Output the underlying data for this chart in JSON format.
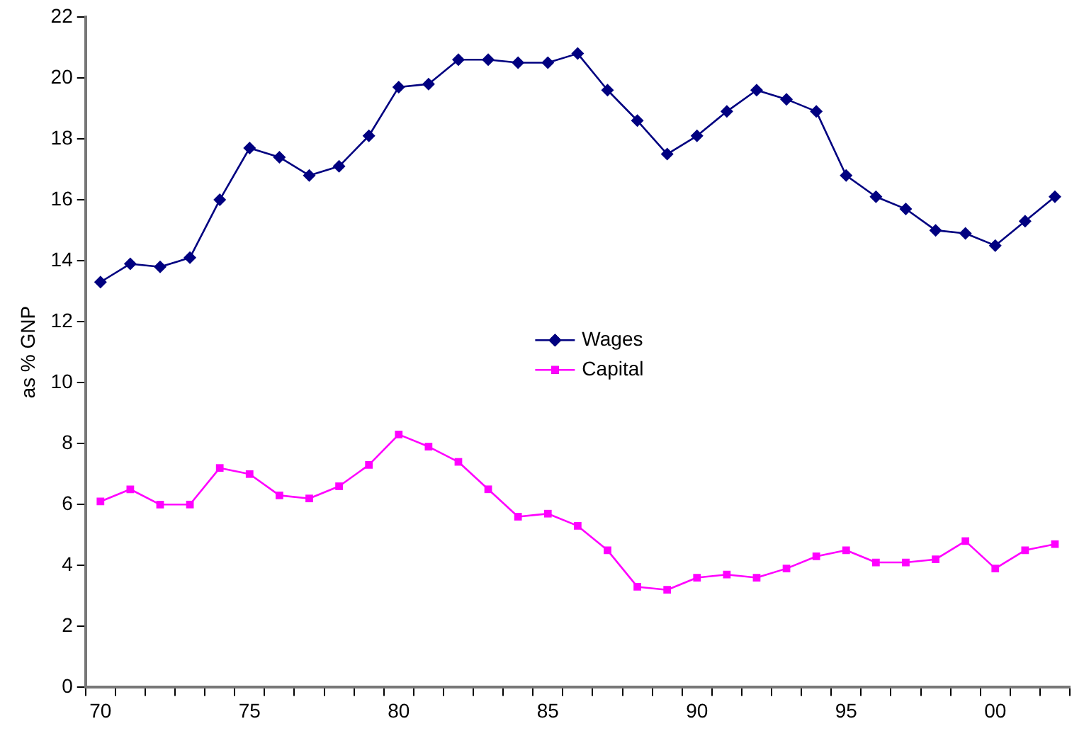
{
  "chart_data": {
    "type": "line",
    "ylabel": "as % GNP",
    "categories": [
      "70",
      null,
      null,
      null,
      null,
      "75",
      null,
      null,
      null,
      null,
      "80",
      null,
      null,
      null,
      null,
      "85",
      null,
      null,
      null,
      null,
      "90",
      null,
      null,
      null,
      null,
      "95",
      null,
      null,
      null,
      null,
      "00",
      null,
      null
    ],
    "series": [
      {
        "name": "Wages",
        "color": "#000080",
        "marker": "diamond",
        "values": [
          13.3,
          13.9,
          13.8,
          14.1,
          16.0,
          17.7,
          17.4,
          16.8,
          17.1,
          18.1,
          19.7,
          19.8,
          20.6,
          20.6,
          20.5,
          20.5,
          20.8,
          19.6,
          18.6,
          17.5,
          18.1,
          18.9,
          19.6,
          19.3,
          18.9,
          16.8,
          16.1,
          15.7,
          15.0,
          14.9,
          14.5,
          15.3,
          16.1
        ]
      },
      {
        "name": "Capital",
        "color": "#ff00ff",
        "marker": "square",
        "values": [
          6.1,
          6.5,
          6.0,
          6.0,
          7.2,
          7.0,
          6.3,
          6.2,
          6.6,
          7.3,
          8.3,
          7.9,
          7.4,
          6.5,
          5.6,
          5.7,
          5.3,
          4.5,
          3.3,
          3.2,
          3.6,
          3.7,
          3.6,
          3.9,
          4.3,
          4.5,
          4.1,
          4.1,
          4.2,
          4.8,
          3.9,
          4.5,
          4.7
        ]
      }
    ],
    "ylim": [
      0,
      22
    ],
    "yticks": [
      0,
      2,
      4,
      6,
      8,
      10,
      12,
      14,
      16,
      18,
      20,
      22
    ],
    "grid": false,
    "legend": "center",
    "line_style": "solid"
  }
}
